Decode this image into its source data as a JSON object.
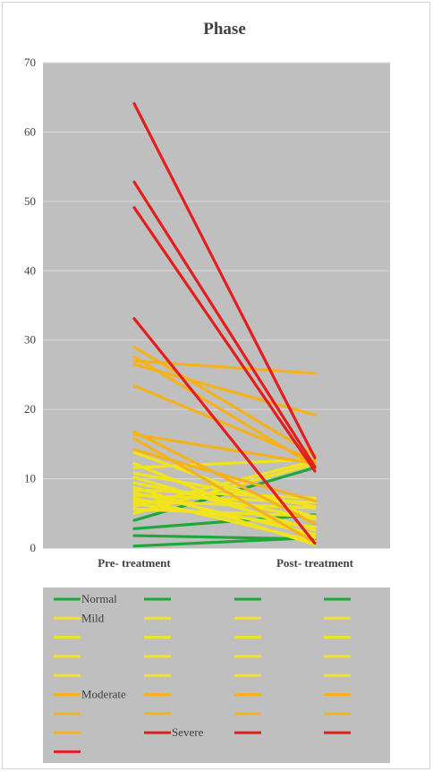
{
  "chart_data": {
    "type": "line",
    "title": "Phase",
    "xlabel": "",
    "ylabel": "",
    "categories": [
      "Pre- treatment",
      "Post- treatment"
    ],
    "ylim": [
      0,
      70
    ],
    "yticks": [
      0,
      10,
      20,
      30,
      40,
      50,
      60,
      70
    ],
    "grid": true,
    "legend_position": "bottom",
    "colors": {
      "Normal": "#1fa83a",
      "Mild": "#f2e41c",
      "Moderate": "#f5b21c",
      "Severe": "#e41e1e",
      "plot_background": "#bfbfbf",
      "legend_background": "#bfbfbf",
      "gridline": "#d9d9d9"
    },
    "legend_labels": [
      "Normal",
      "Mild",
      "Moderate",
      "Severe"
    ],
    "legend_items": [
      {
        "group": "Normal",
        "label": "Normal"
      },
      {
        "group": "Normal",
        "label": ""
      },
      {
        "group": "Normal",
        "label": ""
      },
      {
        "group": "Normal",
        "label": ""
      },
      {
        "group": "Mild",
        "label": "Mild"
      },
      {
        "group": "Mild",
        "label": ""
      },
      {
        "group": "Mild",
        "label": ""
      },
      {
        "group": "Mild",
        "label": ""
      },
      {
        "group": "Mild",
        "label": ""
      },
      {
        "group": "Mild",
        "label": ""
      },
      {
        "group": "Mild",
        "label": ""
      },
      {
        "group": "Mild",
        "label": ""
      },
      {
        "group": "Mild",
        "label": ""
      },
      {
        "group": "Mild",
        "label": ""
      },
      {
        "group": "Mild",
        "label": ""
      },
      {
        "group": "Mild",
        "label": ""
      },
      {
        "group": "Mild",
        "label": ""
      },
      {
        "group": "Mild",
        "label": ""
      },
      {
        "group": "Mild",
        "label": ""
      },
      {
        "group": "Mild",
        "label": ""
      },
      {
        "group": "Moderate",
        "label": "Moderate"
      },
      {
        "group": "Moderate",
        "label": ""
      },
      {
        "group": "Moderate",
        "label": ""
      },
      {
        "group": "Moderate",
        "label": ""
      },
      {
        "group": "Moderate",
        "label": ""
      },
      {
        "group": "Moderate",
        "label": ""
      },
      {
        "group": "Moderate",
        "label": ""
      },
      {
        "group": "Moderate",
        "label": ""
      },
      {
        "group": "Moderate",
        "label": ""
      },
      {
        "group": "Severe",
        "label": "Severe"
      },
      {
        "group": "Severe",
        "label": ""
      },
      {
        "group": "Severe",
        "label": ""
      },
      {
        "group": "Severe",
        "label": ""
      }
    ],
    "series": [
      {
        "group": "Normal",
        "values": [
          0.3,
          1.5
        ]
      },
      {
        "group": "Normal",
        "values": [
          1.8,
          1.3
        ]
      },
      {
        "group": "Normal",
        "values": [
          2.8,
          4.8
        ]
      },
      {
        "group": "Normal",
        "values": [
          4.0,
          11.6
        ]
      },
      {
        "group": "Mild",
        "values": [
          5.0,
          12.2
        ]
      },
      {
        "group": "Mild",
        "values": [
          5.6,
          4.6
        ]
      },
      {
        "group": "Mild",
        "values": [
          6.0,
          12.6
        ]
      },
      {
        "group": "Mild",
        "values": [
          6.4,
          3.0
        ]
      },
      {
        "group": "Mild",
        "values": [
          6.8,
          5.8
        ]
      },
      {
        "group": "Mild",
        "values": [
          7.2,
          1.0
        ]
      },
      {
        "group": "Mild",
        "values": [
          7.6,
          6.6
        ]
      },
      {
        "group": "Mild",
        "values": [
          8.0,
          2.0
        ]
      },
      {
        "group": "Mild",
        "values": [
          8.4,
          7.2
        ]
      },
      {
        "group": "Mild",
        "values": [
          8.8,
          0.5
        ]
      },
      {
        "group": "Mild",
        "values": [
          9.4,
          4.2
        ]
      },
      {
        "group": "Mild",
        "values": [
          10.2,
          2.6
        ]
      },
      {
        "group": "Mild",
        "values": [
          10.8,
          6.0
        ]
      },
      {
        "group": "Mild",
        "values": [
          11.6,
          12.8
        ]
      },
      {
        "group": "Mild",
        "values": [
          12.2,
          1.5
        ]
      },
      {
        "group": "Mild",
        "values": [
          13.8,
          4.4
        ]
      },
      {
        "group": "Moderate",
        "values": [
          14.2,
          6.8
        ]
      },
      {
        "group": "Moderate",
        "values": [
          15.8,
          0.8
        ]
      },
      {
        "group": "Moderate",
        "values": [
          16.4,
          12.2
        ]
      },
      {
        "group": "Moderate",
        "values": [
          16.8,
          3.5
        ]
      },
      {
        "group": "Moderate",
        "values": [
          23.4,
          12.6
        ]
      },
      {
        "group": "Moderate",
        "values": [
          26.5,
          19.2
        ]
      },
      {
        "group": "Moderate",
        "values": [
          27.0,
          25.2
        ]
      },
      {
        "group": "Moderate",
        "values": [
          27.6,
          11.8
        ]
      },
      {
        "group": "Moderate",
        "values": [
          29.0,
          13.4
        ]
      },
      {
        "group": "Severe",
        "values": [
          33.1,
          0.7
        ]
      },
      {
        "group": "Severe",
        "values": [
          49.1,
          11.1
        ]
      },
      {
        "group": "Severe",
        "values": [
          52.8,
          11.7
        ]
      },
      {
        "group": "Severe",
        "values": [
          64.1,
          13.0
        ]
      }
    ]
  }
}
